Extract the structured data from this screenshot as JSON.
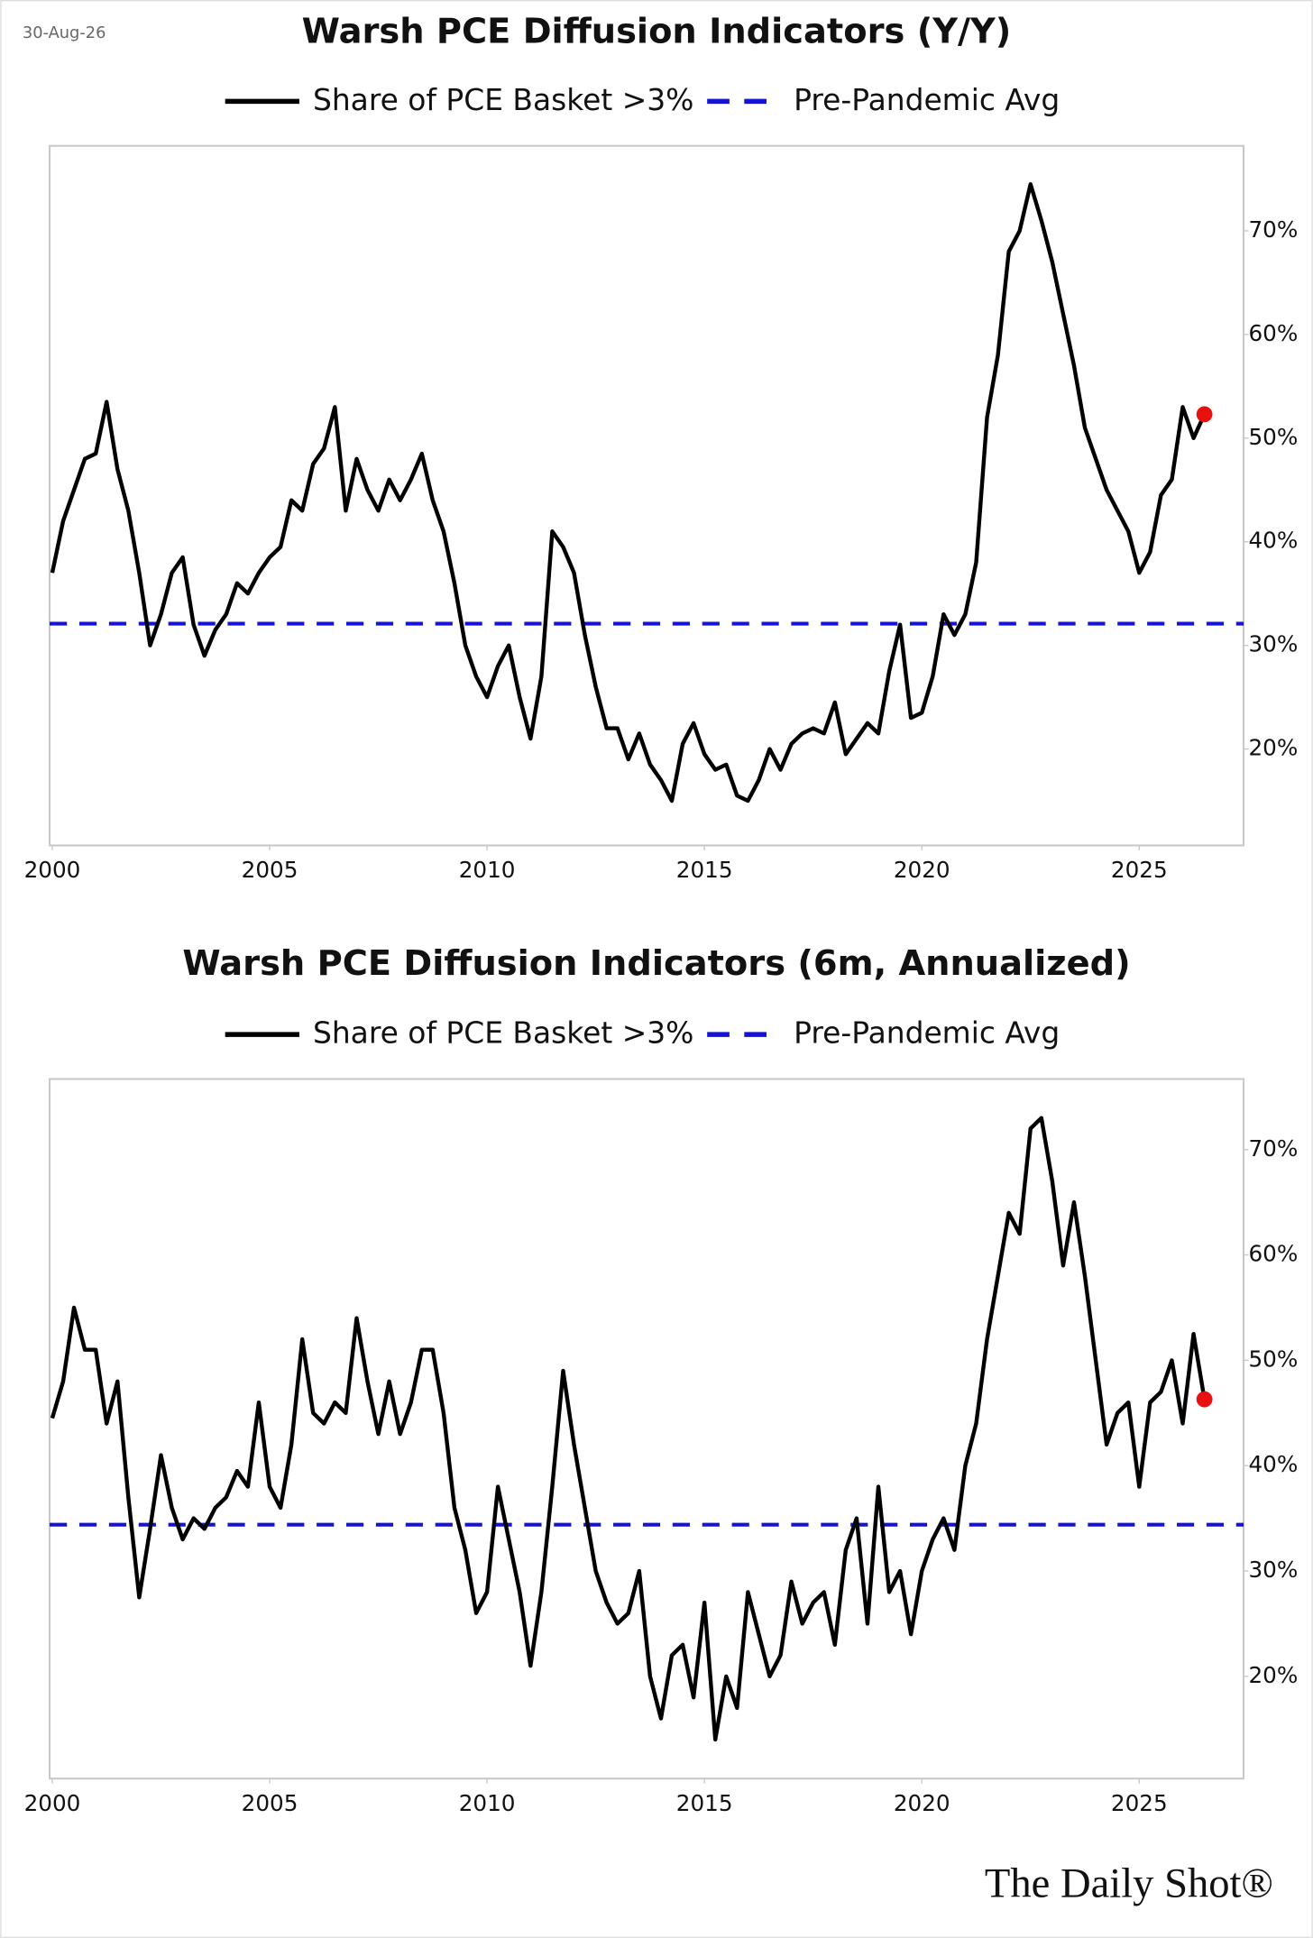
{
  "date": "30-Aug-26",
  "source": "The Daily Shot®",
  "chart_data": [
    {
      "type": "line",
      "title": "Warsh PCE Diffusion Indicators (Y/Y)",
      "x": [
        2000,
        2000.25,
        2000.5,
        2000.75,
        2001,
        2001.25,
        2001.5,
        2001.75,
        2002,
        2002.25,
        2002.5,
        2002.75,
        2003,
        2003.25,
        2003.5,
        2003.75,
        2004,
        2004.25,
        2004.5,
        2004.75,
        2005,
        2005.25,
        2005.5,
        2005.75,
        2006,
        2006.25,
        2006.5,
        2006.75,
        2007,
        2007.25,
        2007.5,
        2007.75,
        2008,
        2008.25,
        2008.5,
        2008.75,
        2009,
        2009.25,
        2009.5,
        2009.75,
        2010,
        2010.25,
        2010.5,
        2010.75,
        2011,
        2011.25,
        2011.5,
        2011.75,
        2012,
        2012.25,
        2012.5,
        2012.75,
        2013,
        2013.25,
        2013.5,
        2013.75,
        2014,
        2014.25,
        2014.5,
        2014.75,
        2015,
        2015.25,
        2015.5,
        2015.75,
        2016,
        2016.25,
        2016.5,
        2016.75,
        2017,
        2017.25,
        2017.5,
        2017.75,
        2018,
        2018.25,
        2018.5,
        2018.75,
        2019,
        2019.25,
        2019.5,
        2019.75,
        2020,
        2020.25,
        2020.5,
        2020.75,
        2021,
        2021.25,
        2021.5,
        2021.75,
        2022,
        2022.25,
        2022.5,
        2022.75,
        2023,
        2023.25,
        2023.5,
        2023.75,
        2024,
        2024.25,
        2024.5,
        2024.75,
        2025,
        2025.25,
        2025.5,
        2025.75,
        2026,
        2026.25,
        2026.5
      ],
      "series": [
        {
          "name": "Share of PCE Basket >3%",
          "color": "#000000",
          "values": [
            37,
            42,
            45,
            48,
            48.5,
            53.5,
            47,
            43,
            37,
            30,
            33,
            37,
            38.5,
            32,
            29,
            31.5,
            33,
            36,
            35,
            37,
            38.5,
            39.5,
            44,
            43,
            47.5,
            49,
            53,
            43,
            48,
            45,
            43,
            46,
            44,
            46,
            48.5,
            44,
            41,
            36,
            30,
            27,
            25,
            28,
            30,
            25,
            21,
            27,
            41,
            39.5,
            37,
            31,
            26,
            22,
            22,
            19,
            21.5,
            18.5,
            17,
            15,
            20.5,
            22.5,
            19.5,
            18,
            18.5,
            15.5,
            15,
            17,
            20,
            18,
            20.5,
            21.5,
            22,
            21.5,
            24.5,
            19.5,
            21,
            22.5,
            21.5,
            27.5,
            32,
            23,
            23.5,
            27,
            33,
            31,
            33,
            38,
            52,
            58,
            68,
            70,
            74.5,
            71,
            67,
            62,
            57,
            51,
            48,
            45,
            43,
            41,
            37,
            39,
            44.5,
            46,
            53,
            50,
            52.3
          ]
        }
      ],
      "hline": {
        "name": "Pre-Pandemic Avg",
        "color": "#1414d2",
        "value": 32.1
      },
      "last_point_color": "#e8110f",
      "xlim": [
        1999.94,
        2027.4
      ],
      "xticks": [
        2000,
        2005,
        2010,
        2015,
        2020,
        2025
      ],
      "ylim": [
        10.7,
        78.2
      ],
      "yticks": [
        {
          "value": 20,
          "label": "20%"
        },
        {
          "value": 30,
          "label": "30%"
        },
        {
          "value": 40,
          "label": "40%"
        },
        {
          "value": 50,
          "label": "50%"
        },
        {
          "value": 60,
          "label": "60%"
        },
        {
          "value": 70,
          "label": "70%"
        }
      ]
    },
    {
      "type": "line",
      "title": "Warsh PCE Diffusion Indicators (6m, Annualized)",
      "x": [
        2000,
        2000.25,
        2000.5,
        2000.75,
        2001,
        2001.25,
        2001.5,
        2001.75,
        2002,
        2002.25,
        2002.5,
        2002.75,
        2003,
        2003.25,
        2003.5,
        2003.75,
        2004,
        2004.25,
        2004.5,
        2004.75,
        2005,
        2005.25,
        2005.5,
        2005.75,
        2006,
        2006.25,
        2006.5,
        2006.75,
        2007,
        2007.25,
        2007.5,
        2007.75,
        2008,
        2008.25,
        2008.5,
        2008.75,
        2009,
        2009.25,
        2009.5,
        2009.75,
        2010,
        2010.25,
        2010.5,
        2010.75,
        2011,
        2011.25,
        2011.5,
        2011.75,
        2012,
        2012.25,
        2012.5,
        2012.75,
        2013,
        2013.25,
        2013.5,
        2013.75,
        2014,
        2014.25,
        2014.5,
        2014.75,
        2015,
        2015.25,
        2015.5,
        2015.75,
        2016,
        2016.25,
        2016.5,
        2016.75,
        2017,
        2017.25,
        2017.5,
        2017.75,
        2018,
        2018.25,
        2018.5,
        2018.75,
        2019,
        2019.25,
        2019.5,
        2019.75,
        2020,
        2020.25,
        2020.5,
        2020.75,
        2021,
        2021.25,
        2021.5,
        2021.75,
        2022,
        2022.25,
        2022.5,
        2022.75,
        2023,
        2023.25,
        2023.5,
        2023.75,
        2024,
        2024.25,
        2024.5,
        2024.75,
        2025,
        2025.25,
        2025.5,
        2025.75,
        2026,
        2026.25,
        2026.5
      ],
      "series": [
        {
          "name": "Share of PCE Basket >3%",
          "color": "#000000",
          "values": [
            44.5,
            48,
            55,
            51,
            51,
            44,
            48,
            37,
            27.5,
            34,
            41,
            36,
            33,
            35,
            34,
            36,
            37,
            39.5,
            38,
            46,
            38,
            36,
            42,
            52,
            45,
            44,
            46,
            45,
            54,
            48,
            43,
            48,
            43,
            46,
            51,
            51,
            45,
            36,
            32,
            26,
            28,
            38,
            33,
            28,
            21,
            28,
            38,
            49,
            42,
            36,
            30,
            27,
            25,
            26,
            30,
            20,
            16,
            22,
            23,
            18,
            27,
            14,
            20,
            17,
            28,
            24,
            20,
            22,
            29,
            25,
            27,
            28,
            23,
            32,
            35,
            25,
            38,
            28,
            30,
            24,
            30,
            33,
            35,
            32,
            40,
            44,
            52,
            58,
            64,
            62,
            72,
            73,
            67,
            59,
            65,
            58,
            50,
            42,
            45,
            46,
            38,
            46,
            47,
            50,
            44,
            52.5,
            46.3
          ]
        }
      ],
      "hline": {
        "name": "Pre-Pandemic Avg",
        "color": "#1414d2",
        "value": 34.4
      },
      "last_point_color": "#e8110f",
      "xlim": [
        1999.94,
        2027.4
      ],
      "xticks": [
        2000,
        2005,
        2010,
        2015,
        2020,
        2025
      ],
      "ylim": [
        10.3,
        76.7
      ],
      "yticks": [
        {
          "value": 20,
          "label": "20%"
        },
        {
          "value": 30,
          "label": "30%"
        },
        {
          "value": 40,
          "label": "40%"
        },
        {
          "value": 50,
          "label": "50%"
        },
        {
          "value": 60,
          "label": "60%"
        },
        {
          "value": 70,
          "label": "70%"
        }
      ]
    }
  ]
}
